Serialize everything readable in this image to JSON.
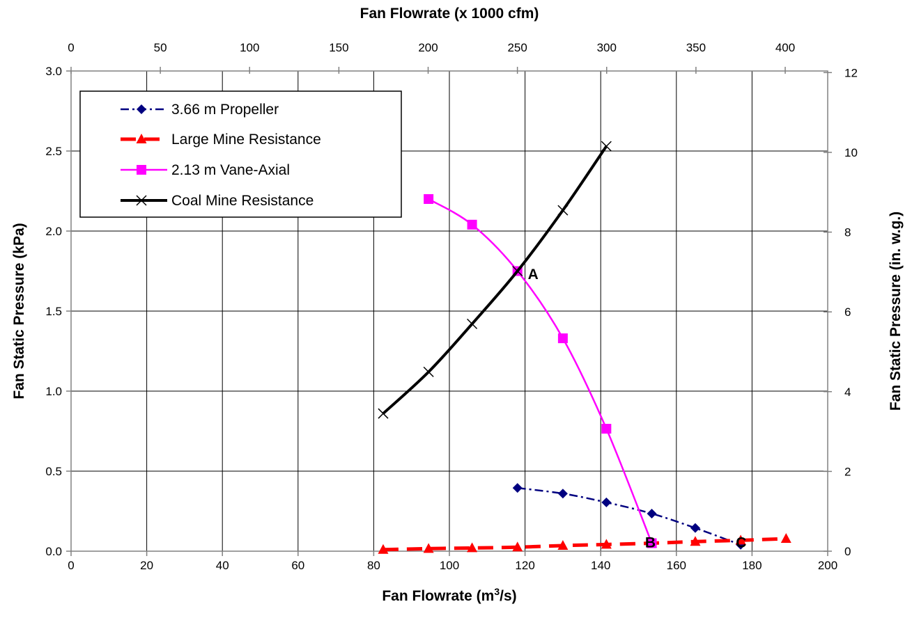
{
  "chart_data": {
    "type": "line",
    "xlabel_bottom": "Fan Flowrate (m",
    "xlabel_bottom_sup": "3",
    "xlabel_bottom_tail": "/s)",
    "xlabel_top": "Fan Flowrate (x 1000 cfm)",
    "ylabel_left": "Fan Static Pressure (kPa)",
    "ylabel_right": "Fan Static Pressure (in. w.g.)",
    "xlim": [
      0,
      200
    ],
    "ylim": [
      0,
      3.0
    ],
    "x_top_lim": [
      0,
      423.8
    ],
    "y_right_lim": [
      0,
      12.04
    ],
    "x_ticks": [
      "0",
      "20",
      "40",
      "60",
      "80",
      "100",
      "120",
      "140",
      "160",
      "180",
      "200"
    ],
    "x_tick_values": [
      0,
      20,
      40,
      60,
      80,
      100,
      120,
      140,
      160,
      180,
      200
    ],
    "y_ticks": [
      "0.0",
      "0.5",
      "1.0",
      "1.5",
      "2.0",
      "2.5",
      "3.0"
    ],
    "y_tick_values": [
      0,
      0.5,
      1.0,
      1.5,
      2.0,
      2.5,
      3.0
    ],
    "x_top_ticks": [
      "0",
      "50",
      "100",
      "150",
      "200",
      "250",
      "300",
      "350",
      "400"
    ],
    "x_top_tick_values": [
      0,
      50,
      100,
      150,
      200,
      250,
      300,
      350,
      400
    ],
    "y_right_ticks": [
      "0",
      "2",
      "4",
      "6",
      "8",
      "10",
      "12"
    ],
    "y_right_tick_values": [
      0,
      2,
      4,
      6,
      8,
      10,
      12
    ],
    "grid": true,
    "legend_position": "top-left",
    "series": [
      {
        "name": "3.66 m Propeller",
        "color": "#000080",
        "marker": "diamond",
        "line_style": "dash-dot",
        "x": [
          118,
          130,
          141.5,
          153.5,
          165,
          177
        ],
        "y": [
          0.395,
          0.36,
          0.305,
          0.235,
          0.145,
          0.04
        ]
      },
      {
        "name": "Large Mine Resistance",
        "color": "#ff0000",
        "marker": "triangle",
        "line_style": "dashed",
        "x": [
          82.5,
          94.5,
          106,
          118,
          130,
          141.5,
          153.5,
          165,
          177,
          189
        ],
        "y": [
          0.01,
          0.016,
          0.02,
          0.025,
          0.035,
          0.042,
          0.05,
          0.06,
          0.068,
          0.078
        ]
      },
      {
        "name": "2.13 m Vane-Axial",
        "color": "#ff00ff",
        "marker": "square",
        "line_style": "solid",
        "x": [
          94.5,
          106,
          118,
          130,
          141.5,
          153.5
        ],
        "y": [
          2.2,
          2.04,
          1.75,
          1.33,
          0.765,
          0.05
        ]
      },
      {
        "name": "Coal Mine Resistance",
        "color": "#000000",
        "marker": "x",
        "line_style": "solid",
        "x": [
          82.5,
          94.5,
          106,
          118,
          130,
          141.5
        ],
        "y": [
          0.86,
          1.12,
          1.42,
          1.75,
          2.13,
          2.53
        ]
      }
    ],
    "annotations": [
      {
        "text": "A",
        "x": 120,
        "y": 1.73
      },
      {
        "text": "B",
        "x": 151,
        "y": 0.055
      },
      {
        "text": "C",
        "x": 175,
        "y": 0.055
      }
    ]
  }
}
